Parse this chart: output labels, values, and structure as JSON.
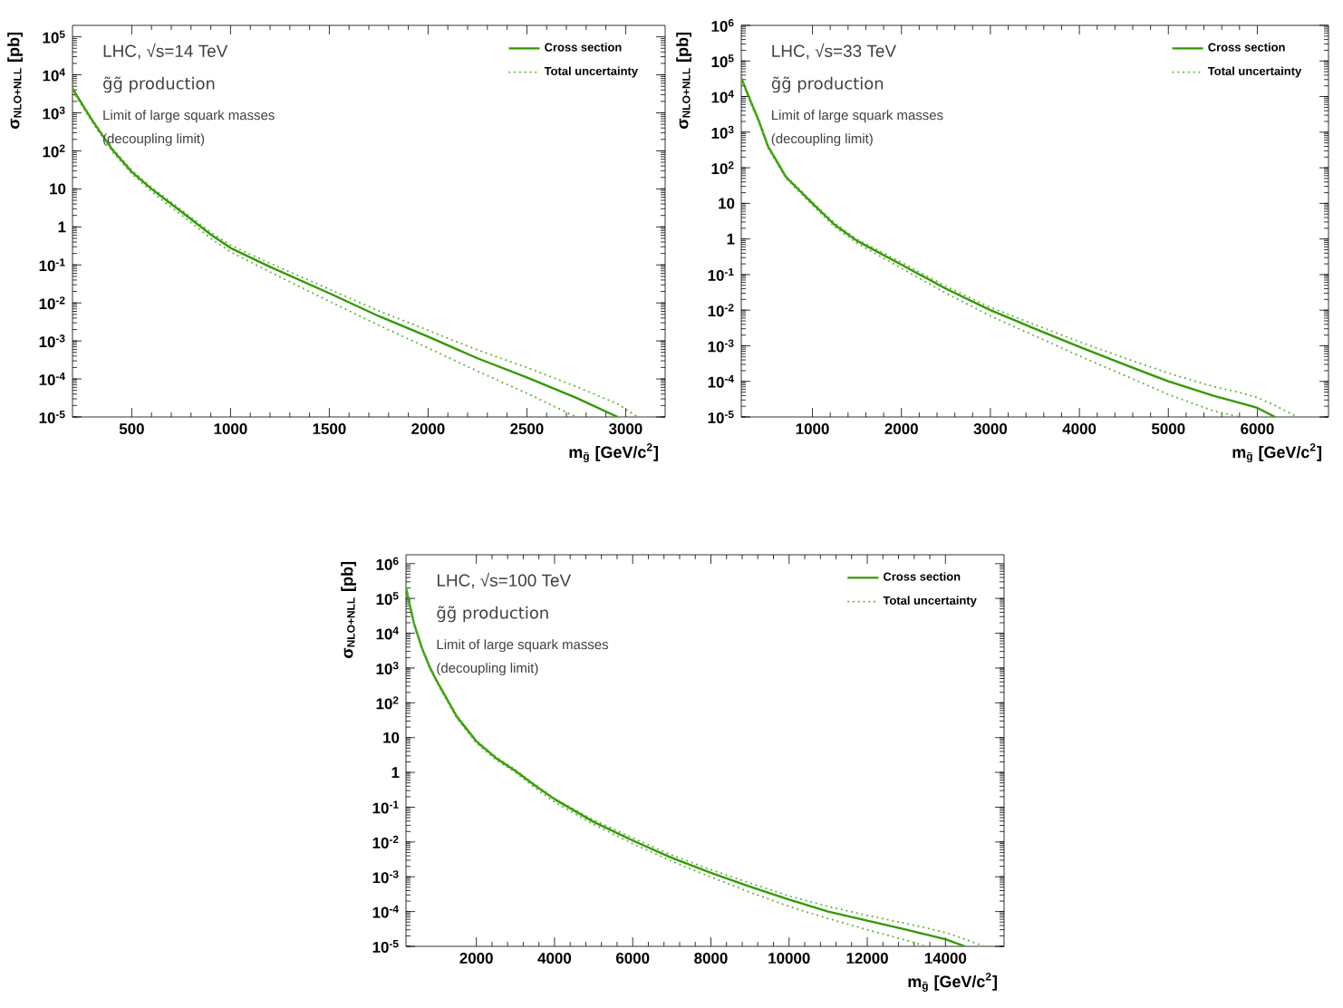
{
  "chart_data": [
    {
      "type": "line",
      "title": "LHC,  √s=14 TeV",
      "subtitle": "g̃g̃ production",
      "annotations": [
        "Limit of large squark masses",
        "(decoupling limit)"
      ],
      "xlabel": "m$_{g̃}$ [GeV/c$^{2}$]",
      "ylabel": "σ$_{NLO+NLL}$ [pb]",
      "log": "y",
      "legend": "top right",
      "xlim": [
        200,
        3200
      ],
      "ylim": [
        1e-05,
        200000
      ],
      "xticks": [
        500,
        1000,
        1500,
        2000,
        2500,
        3000
      ],
      "yticks": [
        {
          "value": 1e-05,
          "label": "10$^{-5}$"
        },
        {
          "value": 0.0001,
          "label": "10$^{-4}$"
        },
        {
          "value": 0.001,
          "label": "10$^{-3}$"
        },
        {
          "value": 0.01,
          "label": "10$^{-2}$"
        },
        {
          "value": 0.1,
          "label": "10$^{-1}$"
        },
        1,
        10,
        {
          "value": 100,
          "label": "10$^{2}$"
        },
        {
          "value": 1000,
          "label": "10$^{3}$"
        },
        {
          "value": 10000,
          "label": "10$^{4}$"
        },
        {
          "value": 100000,
          "label": "10$^{5}$"
        }
      ],
      "series": [
        {
          "name": "Cross section",
          "color": "#339900",
          "line_style": "solid",
          "x": [
            200,
            300,
            400,
            500,
            600,
            700,
            800,
            900,
            1000,
            1200,
            1500,
            1750,
            2000,
            2250,
            2500,
            2750,
            2960
          ],
          "values": [
            4300,
            630,
            110,
            28,
            10,
            4.0,
            1.6,
            0.63,
            0.28,
            0.089,
            0.018,
            0.0045,
            0.0013,
            0.00035,
            0.00011,
            3.2e-05,
            1e-05
          ]
        },
        {
          "name": "Total uncertainty",
          "color": "#55b030",
          "line_style": "dotted",
          "x": [
            200,
            300,
            400,
            500,
            600,
            700,
            800,
            900,
            1000,
            1200,
            1500,
            1750,
            2000,
            2250,
            2500,
            2750,
            2960,
            3060
          ],
          "values": [
            4600,
            680,
            120,
            31,
            11,
            4.5,
            1.8,
            0.72,
            0.33,
            0.11,
            0.023,
            0.0062,
            0.0019,
            0.00058,
            0.0002,
            6.3e-05,
            2.2e-05,
            1e-05
          ]
        },
        {
          "color": "#55b030",
          "line_style": "dotted",
          "x": [
            200,
            300,
            400,
            500,
            600,
            700,
            800,
            900,
            1000,
            1200,
            1500,
            1750,
            2000,
            2250,
            2500,
            2750
          ],
          "values": [
            3800,
            560,
            98,
            25,
            8.5,
            3.3,
            1.3,
            0.5,
            0.22,
            0.065,
            0.011,
            0.0026,
            0.00065,
            0.00016,
            4.2e-05,
            1e-05
          ]
        }
      ]
    },
    {
      "type": "line",
      "title": "LHC,  √s=33 TeV",
      "subtitle": "g̃g̃ production",
      "annotations": [
        "Limit of large squark masses",
        "(decoupling limit)"
      ],
      "xlabel": "m$_{g̃}$ [GeV/c$^{2}$]",
      "ylabel": "σ$_{NLO+NLL}$ [pb]",
      "log": "y",
      "legend": "top right",
      "xlim": [
        200,
        6800
      ],
      "ylim": [
        1e-05,
        1000000
      ],
      "xticks": [
        1000,
        2000,
        3000,
        4000,
        5000,
        6000
      ],
      "yticks": [
        {
          "value": 1e-05,
          "label": "10$^{-5}$"
        },
        {
          "value": 0.0001,
          "label": "10$^{-4}$"
        },
        {
          "value": 0.001,
          "label": "10$^{-3}$"
        },
        {
          "value": 0.01,
          "label": "10$^{-2}$"
        },
        {
          "value": 0.1,
          "label": "10$^{-1}$"
        },
        1,
        10,
        {
          "value": 100,
          "label": "10$^{2}$"
        },
        {
          "value": 1000,
          "label": "10$^{3}$"
        },
        {
          "value": 10000,
          "label": "10$^{4}$"
        },
        {
          "value": 100000,
          "label": "10$^{5}$"
        },
        {
          "value": 1000000,
          "label": "10$^{6}$"
        }
      ],
      "series": [
        {
          "name": "Cross section",
          "color": "#339900",
          "line_style": "solid",
          "x": [
            200,
            300,
            400,
            500,
            700,
            1000,
            1250,
            1500,
            2000,
            2500,
            3000,
            3500,
            4000,
            4500,
            5000,
            5500,
            5800,
            6000,
            6200
          ],
          "values": [
            33000,
            7900,
            2000,
            400,
            56,
            10,
            2.5,
            0.89,
            0.19,
            0.04,
            0.01,
            0.003,
            0.00093,
            0.0003,
            0.0001,
            4e-05,
            2.5e-05,
            1.8e-05,
            1e-05
          ]
        },
        {
          "name": "Total uncertainty",
          "color": "#55b030",
          "line_style": "dotted",
          "x": [
            200,
            300,
            400,
            500,
            700,
            1000,
            1250,
            1500,
            2000,
            2500,
            3000,
            3500,
            4000,
            4500,
            5000,
            5500,
            5800,
            6000,
            6200,
            6450
          ],
          "values": [
            35000,
            8300,
            2100,
            430,
            60,
            11,
            2.8,
            0.98,
            0.22,
            0.047,
            0.012,
            0.0039,
            0.0013,
            0.00046,
            0.00017,
            7.2e-05,
            4.9e-05,
            3.5e-05,
            2.1e-05,
            1e-05
          ]
        },
        {
          "color": "#55b030",
          "line_style": "dotted",
          "x": [
            200,
            300,
            400,
            500,
            700,
            1000,
            1250,
            1500,
            2000,
            2500,
            3000,
            3500,
            4000,
            4500,
            5000,
            5500,
            5800
          ],
          "values": [
            30000,
            7200,
            1800,
            360,
            50,
            8.9,
            2.2,
            0.76,
            0.15,
            0.03,
            0.0069,
            0.0019,
            0.00052,
            0.00015,
            4.3e-05,
            1.5e-05,
            1e-05
          ]
        }
      ]
    },
    {
      "type": "line",
      "title": "LHC,  √s=100 TeV",
      "subtitle": "g̃g̃ production",
      "annotations": [
        "Limit of large squark masses",
        "(decoupling limit)"
      ],
      "xlabel": "m$_{g̃}$ [GeV/c$^{2}$]",
      "ylabel": "σ$_{NLO+NLL}$ [pb]",
      "log": "y",
      "legend": "top right",
      "xlim": [
        200,
        15500
      ],
      "ylim": [
        1e-05,
        1800000
      ],
      "xticks": [
        2000,
        4000,
        6000,
        8000,
        10000,
        12000,
        14000
      ],
      "yticks": [
        {
          "value": 1e-05,
          "label": "10$^{-5}$"
        },
        {
          "value": 0.0001,
          "label": "10$^{-4}$"
        },
        {
          "value": 0.001,
          "label": "10$^{-3}$"
        },
        {
          "value": 0.01,
          "label": "10$^{-2}$"
        },
        {
          "value": 0.1,
          "label": "10$^{-1}$"
        },
        1,
        10,
        {
          "value": 100,
          "label": "10$^{2}$"
        },
        {
          "value": 1000,
          "label": "10$^{3}$"
        },
        {
          "value": 10000,
          "label": "10$^{4}$"
        },
        {
          "value": 100000,
          "label": "10$^{5}$"
        },
        {
          "value": 1000000,
          "label": "10$^{6}$"
        }
      ],
      "series": [
        {
          "name": "Cross section",
          "color": "#339900",
          "line_style": "solid",
          "x": [
            200,
            400,
            600,
            800,
            1000,
            1500,
            2000,
            2500,
            3000,
            3500,
            4000,
            5000,
            6000,
            7000,
            8000,
            9000,
            10000,
            11000,
            12000,
            13000,
            13500,
            14000,
            14500
          ],
          "values": [
            200000,
            20000,
            4000,
            1100,
            400,
            40,
            7.8,
            2.6,
            1.1,
            0.42,
            0.17,
            0.038,
            0.011,
            0.0035,
            0.0013,
            0.00052,
            0.00022,
            0.0001,
            5.5e-05,
            3e-05,
            2.2e-05,
            1.6e-05,
            1e-05
          ]
        },
        {
          "name": "Total uncertainty",
          "color": "#55b030",
          "line_style": "dotted",
          "x": [
            200,
            400,
            600,
            800,
            1000,
            1500,
            2000,
            2500,
            3000,
            3500,
            4000,
            5000,
            6000,
            7000,
            8000,
            9000,
            10000,
            11000,
            12000,
            13000,
            13500,
            14000,
            14500,
            15000
          ],
          "values": [
            210000,
            21000,
            4200,
            1200,
            430,
            43,
            8.3,
            2.8,
            1.2,
            0.45,
            0.18,
            0.043,
            0.013,
            0.0042,
            0.0016,
            0.00066,
            0.00028,
            0.00014,
            7.8e-05,
            4.5e-05,
            3.4e-05,
            2.5e-05,
            1.6e-05,
            1e-05
          ]
        },
        {
          "color": "#55b030",
          "line_style": "dotted",
          "x": [
            200,
            400,
            600,
            800,
            1000,
            1500,
            2000,
            2500,
            3000,
            3500,
            4000,
            5000,
            6000,
            7000,
            8000,
            9000,
            10000,
            11000,
            12000,
            13000,
            13500
          ],
          "values": [
            180000,
            18000,
            3600,
            1000,
            360,
            36,
            6.9,
            2.3,
            1.0,
            0.36,
            0.14,
            0.032,
            0.0089,
            0.0028,
            0.00098,
            0.00036,
            0.00014,
            6.3e-05,
            3e-05,
            1.5e-05,
            1e-05
          ]
        }
      ]
    }
  ]
}
